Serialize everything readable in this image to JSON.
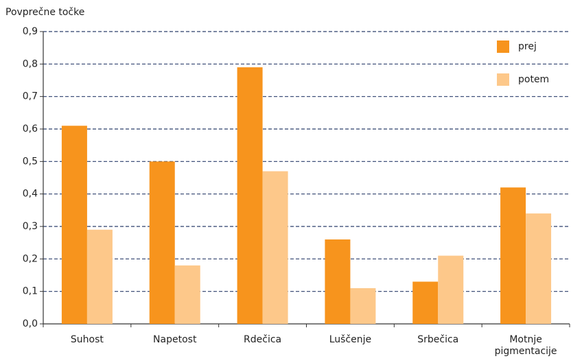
{
  "chart_data": {
    "type": "bar",
    "ylabel": "Povprečne točke",
    "categories": [
      "Suhost",
      "Napetost",
      "Rdečica",
      "Luščenje",
      "Srbečica",
      "Motnje pigmentacije"
    ],
    "series": [
      {
        "name": "prej",
        "color": "#f7941d",
        "values": [
          0.61,
          0.5,
          0.79,
          0.26,
          0.13,
          0.42
        ]
      },
      {
        "name": "potem",
        "color": "#fdc88a",
        "values": [
          0.29,
          0.18,
          0.47,
          0.11,
          0.21,
          0.34
        ]
      }
    ],
    "ylim": [
      0,
      0.9
    ],
    "yticks": [
      {
        "value": 0,
        "label": "0,0"
      },
      {
        "value": 0.1,
        "label": "0,1"
      },
      {
        "value": 0.2,
        "label": "0,2"
      },
      {
        "value": 0.3,
        "label": "0,3"
      },
      {
        "value": 0.4,
        "label": "0,4"
      },
      {
        "value": 0.5,
        "label": "0,5"
      },
      {
        "value": 0.6,
        "label": "0,6"
      },
      {
        "value": 0.7,
        "label": "0,7"
      },
      {
        "value": 0.8,
        "label": "0,8"
      },
      {
        "value": 0.9,
        "label": "0,9"
      }
    ],
    "grid": true,
    "legend": "upper right"
  }
}
